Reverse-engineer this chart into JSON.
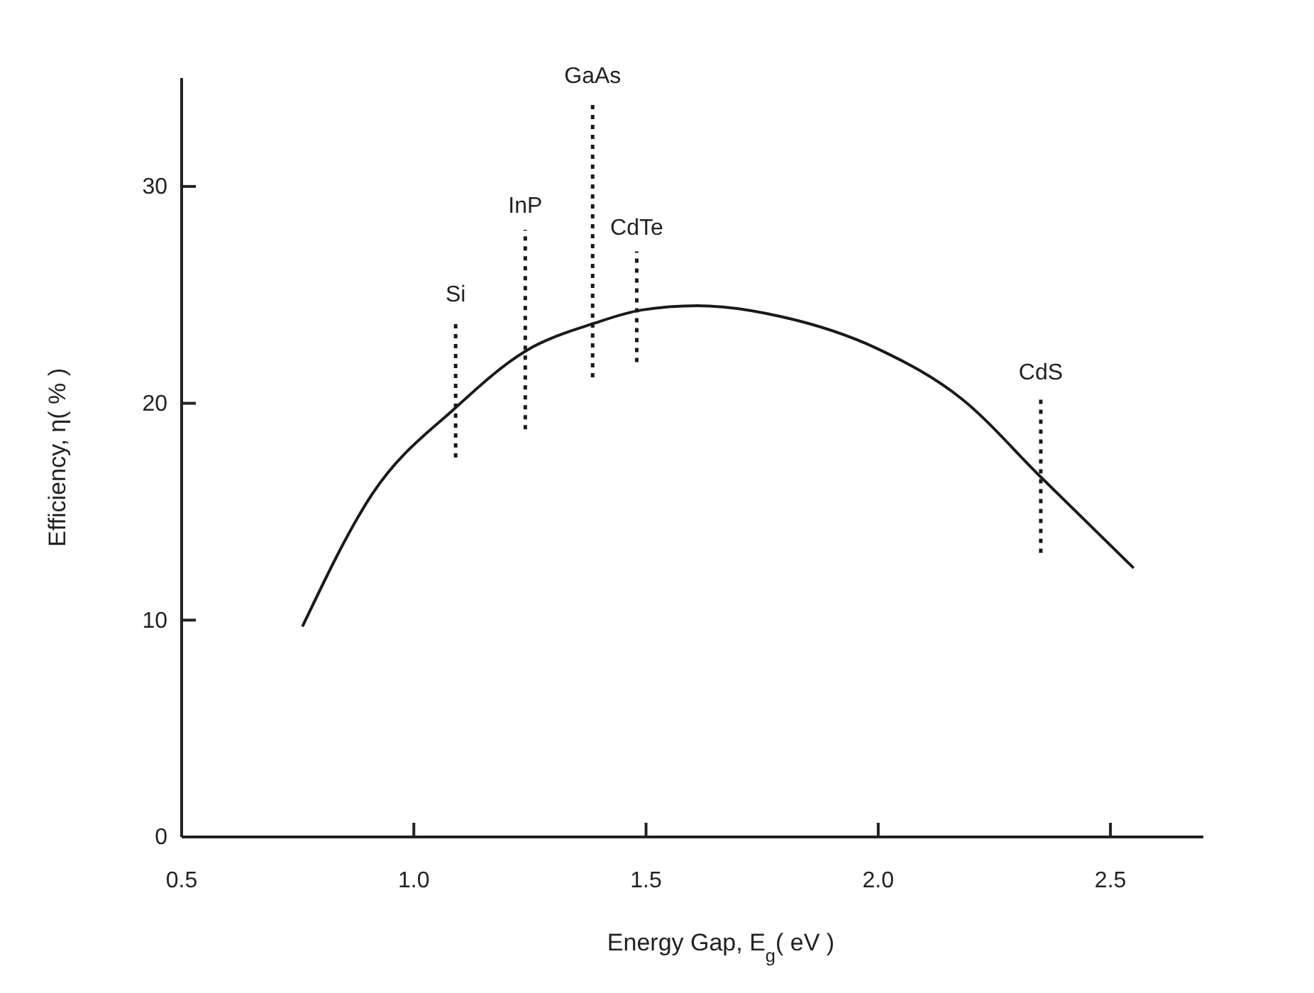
{
  "chart_data": {
    "type": "line",
    "xlabel": "Energy Gap, E$_{g}$( eV )",
    "ylabel": "Efficiency, η( % )",
    "xlim": [
      0.5,
      2.7
    ],
    "xticks": [
      0.5,
      {
        "value": 1,
        "label": "1.0"
      },
      1.5,
      {
        "value": 2,
        "label": "2.0"
      },
      2.5
    ],
    "ylim": [
      0,
      35
    ],
    "yticks": [
      0,
      10,
      20,
      30
    ],
    "grid": false,
    "legend": false,
    "marker": "none",
    "line_style": "solid",
    "series": [
      {
        "color": "#1a1a1a",
        "x": [
          0.76,
          0.91,
          1.09,
          1.24,
          1.39,
          1.49,
          1.61,
          1.79,
          2.0,
          2.18,
          2.35,
          2.55
        ],
        "values": [
          9.7,
          15.8,
          19.8,
          22.4,
          23.7,
          24.3,
          24.5,
          24.0,
          22.5,
          20.2,
          16.6,
          12.4
        ]
      },
      {
        "name": "Si",
        "color": "#1a1a1a",
        "line_style": "dotted",
        "x": [
          1.09,
          1.09
        ],
        "values": [
          17.5,
          23.9
        ]
      },
      {
        "name": "InP",
        "color": "#1a1a1a",
        "line_style": "dotted",
        "x": [
          1.24,
          1.24
        ],
        "values": [
          18.8,
          28.0
        ]
      },
      {
        "name": "GaAs",
        "color": "#1a1a1a",
        "line_style": "dotted",
        "x": [
          1.385,
          1.385
        ],
        "values": [
          21.2,
          34.0
        ]
      },
      {
        "name": "CdTe",
        "color": "#1a1a1a",
        "line_style": "dotted",
        "x": [
          1.48,
          1.48
        ],
        "values": [
          21.9,
          27.0
        ]
      },
      {
        "name": "CdS",
        "color": "#1a1a1a",
        "line_style": "dotted",
        "x": [
          2.35,
          2.35
        ],
        "values": [
          13.1,
          20.3
        ]
      }
    ]
  }
}
